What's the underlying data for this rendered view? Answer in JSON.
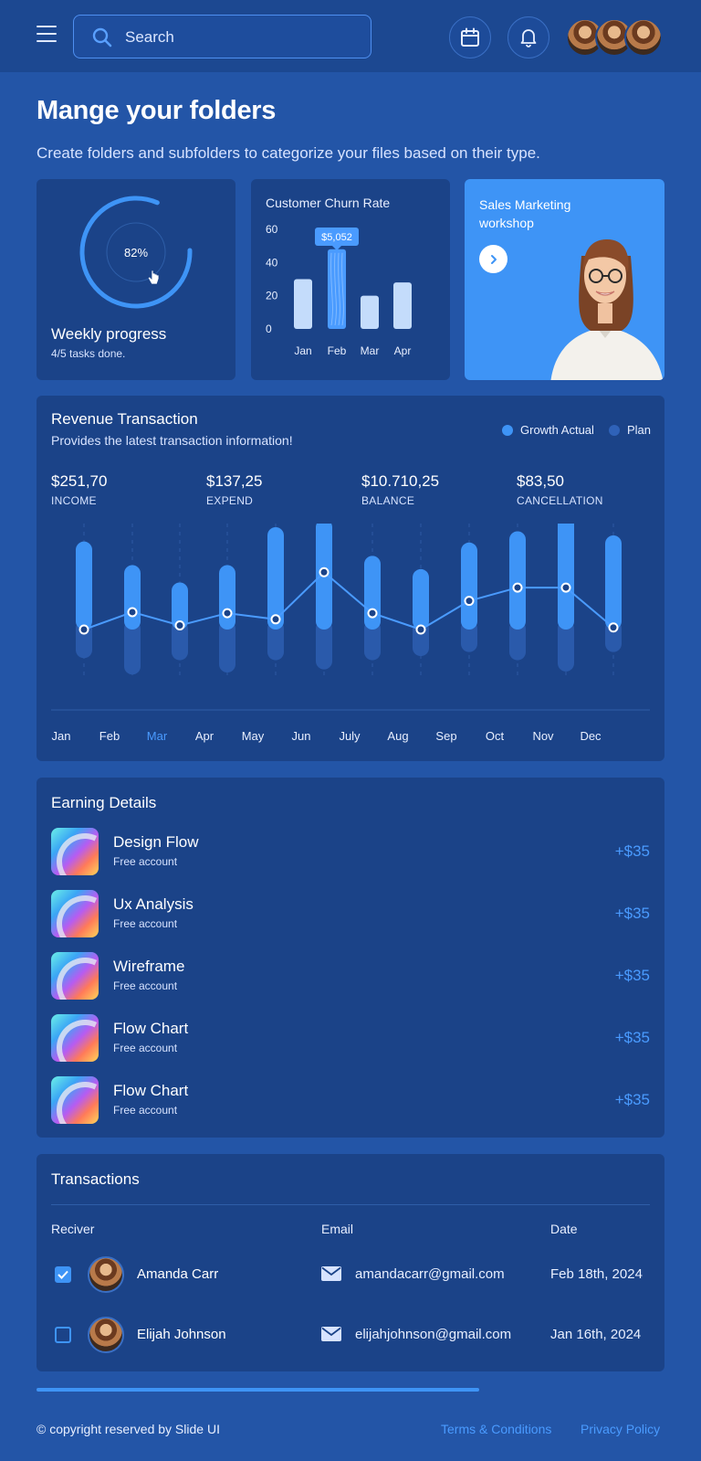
{
  "header": {
    "search_placeholder": "Search",
    "icons": [
      "menu-icon",
      "search-icon",
      "calendar-icon",
      "bell-icon"
    ]
  },
  "page": {
    "title": "Mange your folders",
    "subtitle": "Create folders and subfolders to categorize your files based on their type."
  },
  "progress": {
    "percent_label": "82%",
    "percent": 82,
    "title": "Weekly progress",
    "subtitle": "4/5 tasks done."
  },
  "churn": {
    "title": "Customer Churn Rate",
    "tooltip": "$5,052"
  },
  "workshop": {
    "title": "Sales Marketing workshop"
  },
  "revenue": {
    "title": "Revenue Transaction",
    "subtitle": "Provides the latest transaction information!",
    "legend": [
      "Growth Actual",
      "Plan"
    ],
    "stats": [
      {
        "value": "$251,70",
        "label": "INCOME"
      },
      {
        "value": "$137,25",
        "label": "EXPEND"
      },
      {
        "value": "$10.710,25",
        "label": "BALANCE"
      },
      {
        "value": "$83,50",
        "label": "CANCELLATION"
      }
    ],
    "highlight_month": "Mar"
  },
  "earning": {
    "title": "Earning Details",
    "items": [
      {
        "name": "Design Flow",
        "sub": "Free account",
        "amount": "+$35"
      },
      {
        "name": "Ux Analysis",
        "sub": "Free account",
        "amount": "+$35"
      },
      {
        "name": "Wireframe",
        "sub": "Free account",
        "amount": "+$35"
      },
      {
        "name": "Flow Chart",
        "sub": "Free account",
        "amount": "+$35"
      },
      {
        "name": "Flow Chart",
        "sub": "Free account",
        "amount": "+$35"
      }
    ]
  },
  "transactions": {
    "title": "Transactions",
    "headers": [
      "Reciver",
      "Email",
      "Date"
    ],
    "rows": [
      {
        "name": "Amanda Carr",
        "email": "amandacarr@gmail.com",
        "date": "Feb 18th, 2024",
        "checked": true
      },
      {
        "name": "Elijah Johnson",
        "email": "elijahjohnson@gmail.com",
        "date": "Jan 16th, 2024",
        "checked": false
      }
    ]
  },
  "footer": {
    "copyright": "© copyright reserved by Slide UI",
    "terms": "Terms & Conditions",
    "privacy": "Privacy Policy"
  },
  "colors": {
    "accent": "#3e94f6",
    "background": "#2355a7",
    "card": "#1b4388",
    "light_bar": "#c4dcfb",
    "plan_bar": "#2a5aab"
  },
  "chart_data": [
    {
      "type": "bar",
      "categories": [
        "Jan",
        "Feb",
        "Mar",
        "Apr"
      ],
      "values": [
        30,
        48,
        20,
        28
      ],
      "title": "Customer Churn Rate",
      "xlabel": "",
      "ylabel": "",
      "ylim": [
        0,
        60
      ],
      "yticks": [
        0,
        20,
        40,
        60
      ],
      "annotations": [
        {
          "category": "Feb",
          "text": "$5,052"
        }
      ]
    },
    {
      "type": "bar",
      "categories": [
        "Jan",
        "Feb",
        "Mar",
        "Apr",
        "May",
        "Jun",
        "July",
        "Aug",
        "Sep",
        "Oct",
        "Nov",
        "Dec"
      ],
      "series": [
        {
          "name": "Growth Actual",
          "values": [
            86,
            63,
            46,
            63,
            100,
            108,
            72,
            59,
            85,
            96,
            112,
            92
          ]
        },
        {
          "name": "Plan",
          "values": [
            -28,
            -44,
            -30,
            -42,
            -30,
            -39,
            -30,
            -26,
            -22,
            -30,
            -41,
            -22
          ]
        }
      ],
      "line": [
        0,
        17,
        4,
        16,
        10,
        56,
        16,
        0,
        28,
        41,
        41,
        2
      ],
      "title": "Revenue Transaction",
      "ylim": [
        -50,
        120
      ],
      "grid": true
    }
  ]
}
